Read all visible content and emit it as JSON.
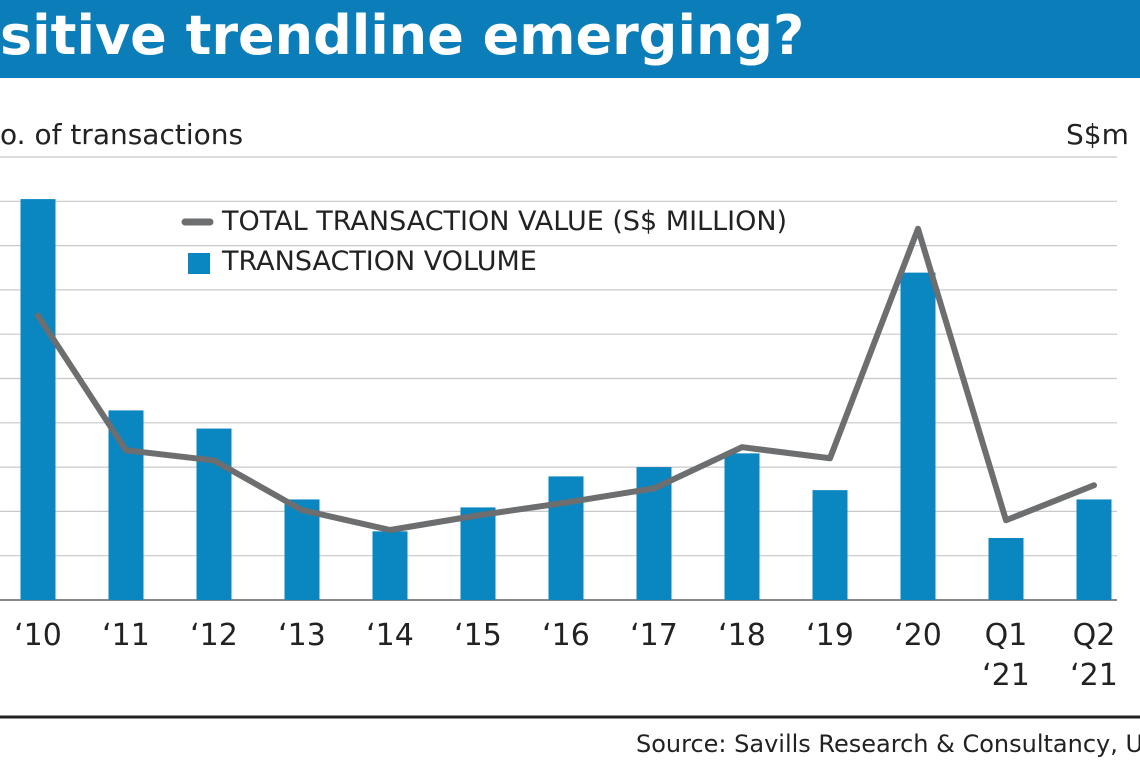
{
  "chart_data": {
    "type": "bar-line",
    "title": "sitive trendline emerging?",
    "y_label": "o. of transactions",
    "y2_label": "S$m",
    "source": "Source: Savills Research & Consultancy, URA",
    "categories": [
      "‘10",
      "‘11",
      "‘12",
      "‘13",
      "‘14",
      "‘15",
      "‘16",
      "‘17",
      "‘18",
      "‘19",
      "‘20",
      "Q1 ‘21",
      "Q2 ‘21"
    ],
    "series": [
      {
        "name": "TOTAL TRANSACTION VALUE (S$ MILLION)",
        "type": "line",
        "color": "#6d6e70",
        "values": [
          6.42,
          3.38,
          3.15,
          2.03,
          1.58,
          1.91,
          2.2,
          2.52,
          3.45,
          3.2,
          8.38,
          1.8,
          2.59
        ]
      },
      {
        "name": "TRANSACTION VOLUME",
        "type": "bar",
        "color": "#0a86c0",
        "values": [
          9.05,
          4.28,
          3.87,
          2.27,
          1.55,
          2.09,
          2.79,
          3.0,
          3.31,
          2.48,
          7.39,
          1.4,
          2.27
        ]
      }
    ],
    "ylim": [
      0,
      10
    ],
    "yticks": [
      0,
      1,
      2,
      3,
      4,
      5,
      6,
      7,
      8,
      9,
      10
    ],
    "grid": true
  }
}
